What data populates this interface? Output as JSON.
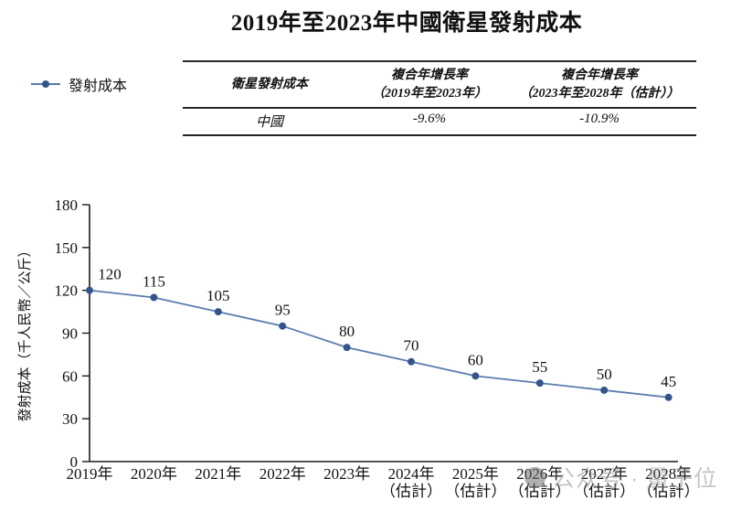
{
  "title": "2019年至2023年中國衛星發射成本",
  "legend": {
    "label": "發射成本"
  },
  "table": {
    "headers": [
      "衛星發射成本",
      "複合年增長率\n（2019年至2023年）",
      "複合年增長率\n（2023年至2028年（估計））"
    ],
    "rows": [
      [
        "中國",
        "-9.6%",
        "-10.9%"
      ]
    ]
  },
  "watermark": {
    "icon": "circle-logo",
    "text": "公众号 · 量子位"
  },
  "chart_data": {
    "type": "line",
    "title": "2019年至2023年中國衛星發射成本",
    "categories": [
      "2019年",
      "2020年",
      "2021年",
      "2022年",
      "2023年",
      "2024年\n（估計）",
      "2025年\n（估計）",
      "2026年\n（估計）",
      "2027年\n（估計）",
      "2028年\n（估計）"
    ],
    "series": [
      {
        "name": "發射成本",
        "values": [
          120,
          115,
          105,
          95,
          80,
          70,
          60,
          55,
          50,
          45
        ]
      }
    ],
    "ylabel": "發射成本（千人民幣／公斤）",
    "xlabel": "",
    "ylim": [
      0,
      180
    ],
    "yticks": [
      0,
      30,
      60,
      90,
      120,
      150,
      180
    ],
    "grid": false,
    "legend_position": "top-left",
    "data_labels": true,
    "line_color": "#5b7cae",
    "marker_color": "#35548a",
    "axis_color": "#1a1a1a"
  }
}
